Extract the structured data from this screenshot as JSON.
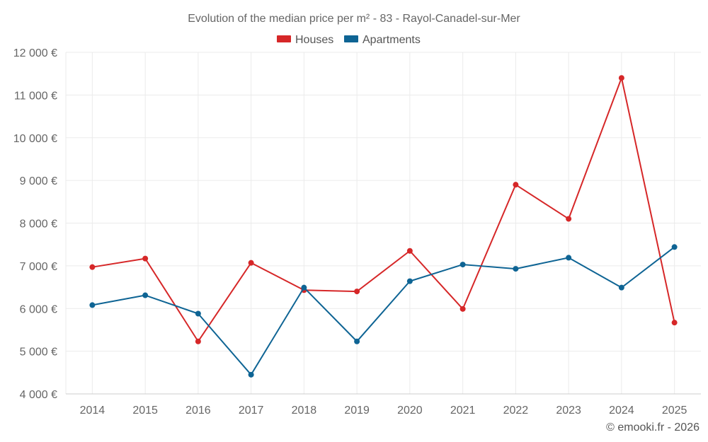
{
  "chart_data": {
    "type": "line",
    "title": "Evolution of the median price per m² - 83 - Rayol-Canadel-sur-Mer",
    "categories": [
      "2014",
      "2015",
      "2016",
      "2017",
      "2018",
      "2019",
      "2020",
      "2021",
      "2022",
      "2023",
      "2024",
      "2025"
    ],
    "series": [
      {
        "name": "Houses",
        "color": "#d62728",
        "values": [
          6970,
          7170,
          5230,
          7070,
          6430,
          6400,
          7350,
          5990,
          8900,
          8100,
          11400,
          5670
        ]
      },
      {
        "name": "Apartments",
        "color": "#0e6494",
        "values": [
          6080,
          6310,
          5880,
          4450,
          6490,
          5230,
          6640,
          7030,
          6930,
          7190,
          6490,
          7440
        ]
      }
    ],
    "ylim": [
      4000,
      12000
    ],
    "yticks": [
      4000,
      5000,
      6000,
      7000,
      8000,
      9000,
      10000,
      11000,
      12000
    ],
    "ytick_labels": [
      "4 000 €",
      "5 000 €",
      "6 000 €",
      "7 000 €",
      "8 000 €",
      "9 000 €",
      "10 000 €",
      "11 000 €",
      "12 000 €"
    ],
    "xlabel": "",
    "ylabel": "",
    "grid": true,
    "legend_position": "top-center"
  },
  "footer": {
    "credit": "© emooki.fr - 2026"
  }
}
